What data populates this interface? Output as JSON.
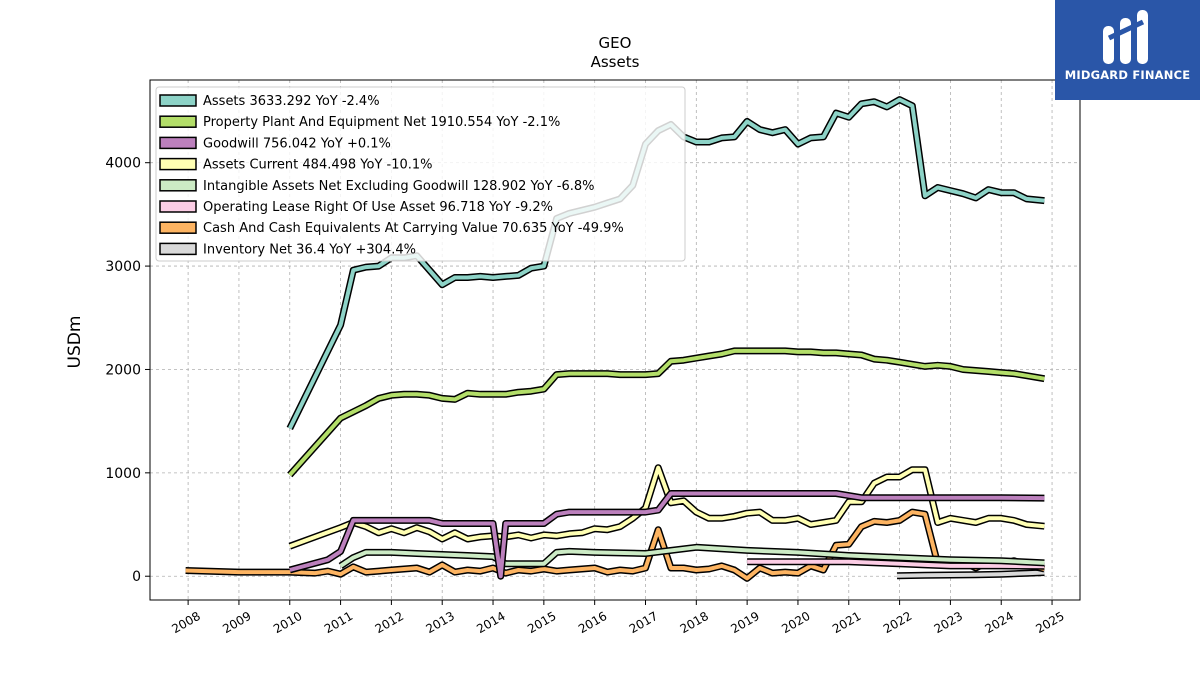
{
  "brand": {
    "name": "MIDGARD FINANCE",
    "icon": "midgard-logo-icon",
    "color": "#2a56a8"
  },
  "chart_data": {
    "type": "line",
    "title": "GEO",
    "subtitle": "Assets",
    "xlabel": "",
    "ylabel": "USDm",
    "xlim": [
      2007.25,
      2025.55
    ],
    "ylim": [
      -230,
      4800
    ],
    "x_ticks": [
      "2008",
      "2009",
      "2010",
      "2011",
      "2012",
      "2013",
      "2014",
      "2015",
      "2016",
      "2017",
      "2018",
      "2019",
      "2020",
      "2021",
      "2022",
      "2023",
      "2024",
      "2025"
    ],
    "y_ticks": [
      0,
      1000,
      2000,
      3000,
      4000
    ],
    "grid": true,
    "legend_position": "top-left",
    "series": [
      {
        "name": "Assets",
        "legend": "Assets  3633.292 YoY -2.4%",
        "color": "#8dd3c7",
        "x": [
          2010,
          2011,
          2011.25,
          2011.5,
          2011.75,
          2012,
          2012.25,
          2012.5,
          2012.75,
          2013,
          2013.25,
          2013.5,
          2013.75,
          2014,
          2014.25,
          2014.5,
          2014.75,
          2015,
          2015.25,
          2015.5,
          2015.75,
          2016,
          2016.25,
          2016.5,
          2016.75,
          2017,
          2017.25,
          2017.5,
          2017.75,
          2018,
          2018.25,
          2018.5,
          2018.75,
          2019,
          2019.25,
          2019.5,
          2019.75,
          2020,
          2020.25,
          2020.5,
          2020.75,
          2021,
          2021.25,
          2021.5,
          2021.75,
          2022,
          2022.25,
          2022.5,
          2022.75,
          2023,
          2023.25,
          2023.5,
          2023.75,
          2024,
          2024.25,
          2024.5,
          2024.85
        ],
        "y": [
          1430,
          2430,
          2960,
          2990,
          3000,
          3080,
          3080,
          3100,
          2960,
          2820,
          2890,
          2890,
          2900,
          2890,
          2900,
          2910,
          2980,
          3000,
          3460,
          3510,
          3540,
          3570,
          3610,
          3650,
          3780,
          4180,
          4310,
          4370,
          4250,
          4200,
          4200,
          4240,
          4250,
          4400,
          4320,
          4290,
          4320,
          4180,
          4240,
          4250,
          4480,
          4440,
          4570,
          4590,
          4540,
          4610,
          4550,
          3680,
          3760,
          3730,
          3700,
          3660,
          3740,
          3710,
          3710,
          3650,
          3633
        ]
      },
      {
        "name": "Property Plant And Equipment Net",
        "legend": "Property Plant And Equipment Net  1910.554 YoY -2.1%",
        "color": "#b3de69",
        "x": [
          2010,
          2011,
          2011.5,
          2011.75,
          2012,
          2012.25,
          2012.5,
          2012.75,
          2013,
          2013.25,
          2013.5,
          2013.75,
          2014,
          2014.25,
          2014.5,
          2014.75,
          2015,
          2015.25,
          2015.5,
          2015.75,
          2016,
          2016.25,
          2016.5,
          2016.75,
          2017,
          2017.25,
          2017.5,
          2017.75,
          2018,
          2018.25,
          2018.5,
          2018.75,
          2019,
          2019.25,
          2019.5,
          2019.75,
          2020,
          2020.25,
          2020.5,
          2020.75,
          2021,
          2021.25,
          2021.5,
          2021.75,
          2022,
          2022.25,
          2022.5,
          2022.75,
          2023,
          2023.25,
          2023.5,
          2023.75,
          2024,
          2024.25,
          2024.5,
          2024.85
        ],
        "y": [
          980,
          1530,
          1650,
          1720,
          1750,
          1760,
          1760,
          1750,
          1720,
          1710,
          1770,
          1760,
          1760,
          1760,
          1780,
          1790,
          1810,
          1950,
          1960,
          1960,
          1960,
          1960,
          1950,
          1950,
          1950,
          1960,
          2080,
          2090,
          2110,
          2130,
          2150,
          2180,
          2180,
          2180,
          2180,
          2180,
          2170,
          2170,
          2160,
          2160,
          2150,
          2140,
          2100,
          2090,
          2070,
          2050,
          2030,
          2040,
          2030,
          2000,
          1990,
          1980,
          1970,
          1960,
          1940,
          1911
        ]
      },
      {
        "name": "Goodwill",
        "legend": "Goodwill  756.042 YoY +0.1%",
        "color": "#bc80bd",
        "x": [
          2010,
          2010.75,
          2011,
          2011.25,
          2012,
          2012.75,
          2013,
          2013.75,
          2014,
          2014.15,
          2014.25,
          2015,
          2015.25,
          2015.5,
          2016,
          2016.75,
          2017,
          2017.25,
          2017.5,
          2018,
          2019,
          2020,
          2020.75,
          2021,
          2021.25,
          2022,
          2023,
          2024,
          2024.85
        ],
        "y": [
          60,
          160,
          240,
          540,
          540,
          540,
          510,
          510,
          510,
          0,
          510,
          510,
          600,
          620,
          620,
          620,
          620,
          640,
          800,
          800,
          800,
          800,
          800,
          780,
          760,
          760,
          760,
          760,
          756
        ]
      },
      {
        "name": "Assets Current",
        "legend": "Assets Current  484.498 YoY -10.1%",
        "color": "#ffffb3",
        "x": [
          2010,
          2010.5,
          2011,
          2011.25,
          2011.5,
          2011.75,
          2012,
          2012.25,
          2012.5,
          2012.75,
          2013,
          2013.25,
          2013.5,
          2013.75,
          2014,
          2014.25,
          2014.5,
          2014.75,
          2015,
          2015.25,
          2015.5,
          2015.75,
          2016,
          2016.25,
          2016.5,
          2016.75,
          2017,
          2017.25,
          2017.5,
          2017.75,
          2018,
          2018.25,
          2018.5,
          2018.75,
          2019,
          2019.25,
          2019.5,
          2019.75,
          2020,
          2020.25,
          2020.5,
          2020.75,
          2021,
          2021.25,
          2021.5,
          2021.75,
          2022,
          2022.25,
          2022.5,
          2022.75,
          2023,
          2023.25,
          2023.5,
          2023.75,
          2024,
          2024.25,
          2024.5,
          2024.85
        ],
        "y": [
          290,
          380,
          470,
          520,
          480,
          420,
          460,
          420,
          470,
          430,
          360,
          420,
          360,
          380,
          390,
          380,
          400,
          370,
          400,
          390,
          410,
          420,
          460,
          450,
          480,
          560,
          660,
          1050,
          710,
          730,
          620,
          560,
          560,
          580,
          610,
          620,
          540,
          540,
          560,
          500,
          520,
          540,
          720,
          720,
          900,
          960,
          960,
          1030,
          1030,
          520,
          560,
          540,
          520,
          560,
          560,
          540,
          500,
          484
        ]
      },
      {
        "name": "Intangible Assets Net Excluding Goodwill",
        "legend": "Intangible Assets Net Excluding Goodwill  128.902 YoY -6.8%",
        "color": "#ccebc5",
        "x": [
          2011,
          2011.25,
          2011.5,
          2012,
          2012.5,
          2013,
          2013.5,
          2014,
          2014.25,
          2015,
          2015.25,
          2015.5,
          2016,
          2017,
          2018,
          2019,
          2020,
          2021,
          2022,
          2023,
          2024,
          2024.85
        ],
        "y": [
          100,
          180,
          230,
          230,
          220,
          210,
          200,
          190,
          120,
          120,
          230,
          240,
          230,
          220,
          280,
          250,
          230,
          200,
          180,
          160,
          150,
          129
        ]
      },
      {
        "name": "Operating Lease Right Of Use Asset",
        "legend": "Operating Lease Right Of Use Asset  96.718 YoY -9.2%",
        "color": "#fccde5",
        "x": [
          2019,
          2019.5,
          2020,
          2020.5,
          2021,
          2021.5,
          2022,
          2022.5,
          2023,
          2023.5,
          2024,
          2024.5,
          2024.85
        ],
        "y": [
          140,
          140,
          140,
          140,
          140,
          130,
          120,
          110,
          100,
          100,
          100,
          98,
          97
        ]
      },
      {
        "name": "Cash And Cash Equivalents At Carrying Value",
        "legend": "Cash And Cash Equivalents At Carrying Value  70.635 YoY -49.9%",
        "color": "#fdb462",
        "x": [
          2007.95,
          2009,
          2010,
          2010.5,
          2010.75,
          2011,
          2011.25,
          2011.5,
          2011.75,
          2012,
          2012.25,
          2012.5,
          2012.75,
          2013,
          2013.25,
          2013.5,
          2013.75,
          2014,
          2014.25,
          2014.5,
          2014.75,
          2015,
          2015.25,
          2015.5,
          2015.75,
          2016,
          2016.25,
          2016.5,
          2016.75,
          2017,
          2017.25,
          2017.5,
          2017.75,
          2018,
          2018.25,
          2018.5,
          2018.75,
          2019,
          2019.25,
          2019.5,
          2019.75,
          2020,
          2020.25,
          2020.5,
          2020.75,
          2021,
          2021.25,
          2021.5,
          2021.75,
          2022,
          2022.25,
          2022.5,
          2022.75,
          2023,
          2023.25,
          2023.5,
          2023.75,
          2024,
          2024.25,
          2024.5,
          2024.85
        ],
        "y": [
          55,
          40,
          40,
          30,
          50,
          20,
          90,
          40,
          50,
          60,
          70,
          80,
          40,
          110,
          40,
          60,
          50,
          80,
          30,
          60,
          50,
          70,
          50,
          60,
          70,
          80,
          40,
          60,
          50,
          80,
          450,
          80,
          80,
          60,
          70,
          100,
          60,
          -20,
          80,
          30,
          40,
          30,
          100,
          60,
          300,
          310,
          480,
          530,
          520,
          540,
          620,
          600,
          120,
          120,
          140,
          80,
          140,
          110,
          150,
          110,
          71
        ]
      },
      {
        "name": "Inventory Net",
        "legend": "Inventory Net  36.4 YoY +304.4%",
        "color": "#d9d9d9",
        "x": [
          2021.95,
          2022.5,
          2023,
          2023.5,
          2024,
          2024.5,
          2024.85
        ],
        "y": [
          5,
          10,
          12,
          15,
          20,
          28,
          36
        ]
      }
    ]
  }
}
